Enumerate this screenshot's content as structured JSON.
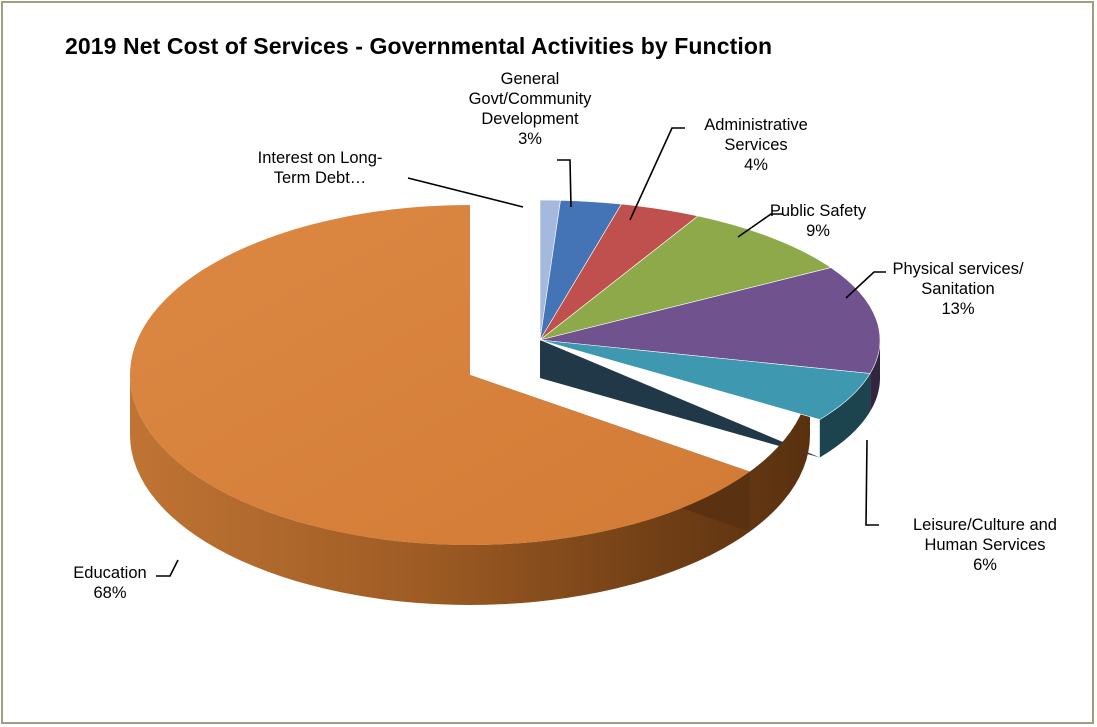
{
  "chart_data": {
    "type": "pie",
    "variant": "3d-exploded",
    "title": "2019 Net Cost of Services - Governmental Activities by Function",
    "slices": [
      {
        "label_lines": [
          "Interest on Long-",
          "Term Debt…"
        ],
        "percent_label": "",
        "value": 1,
        "color": "#a4b9dd"
      },
      {
        "label_lines": [
          "General",
          "Govt/Community",
          "Development"
        ],
        "percent_label": "3%",
        "value": 3,
        "color": "#4474b5"
      },
      {
        "label_lines": [
          "Administrative",
          "Services"
        ],
        "percent_label": "4%",
        "value": 4,
        "color": "#c0504d"
      },
      {
        "label_lines": [
          "Public Safety"
        ],
        "percent_label": "9%",
        "value": 9,
        "color": "#8ea94a"
      },
      {
        "label_lines": [
          "Physical services/",
          "Sanitation"
        ],
        "percent_label": "13%",
        "value": 13,
        "color": "#6f528e"
      },
      {
        "label_lines": [
          "Leisure/Culture and",
          "Human Services"
        ],
        "percent_label": "6%",
        "value": 6,
        "color": "#3d98b0"
      },
      {
        "label_lines": [
          "Education"
        ],
        "percent_label": "68%",
        "value": 68,
        "color": "#d6803b"
      }
    ],
    "legend": "none"
  }
}
